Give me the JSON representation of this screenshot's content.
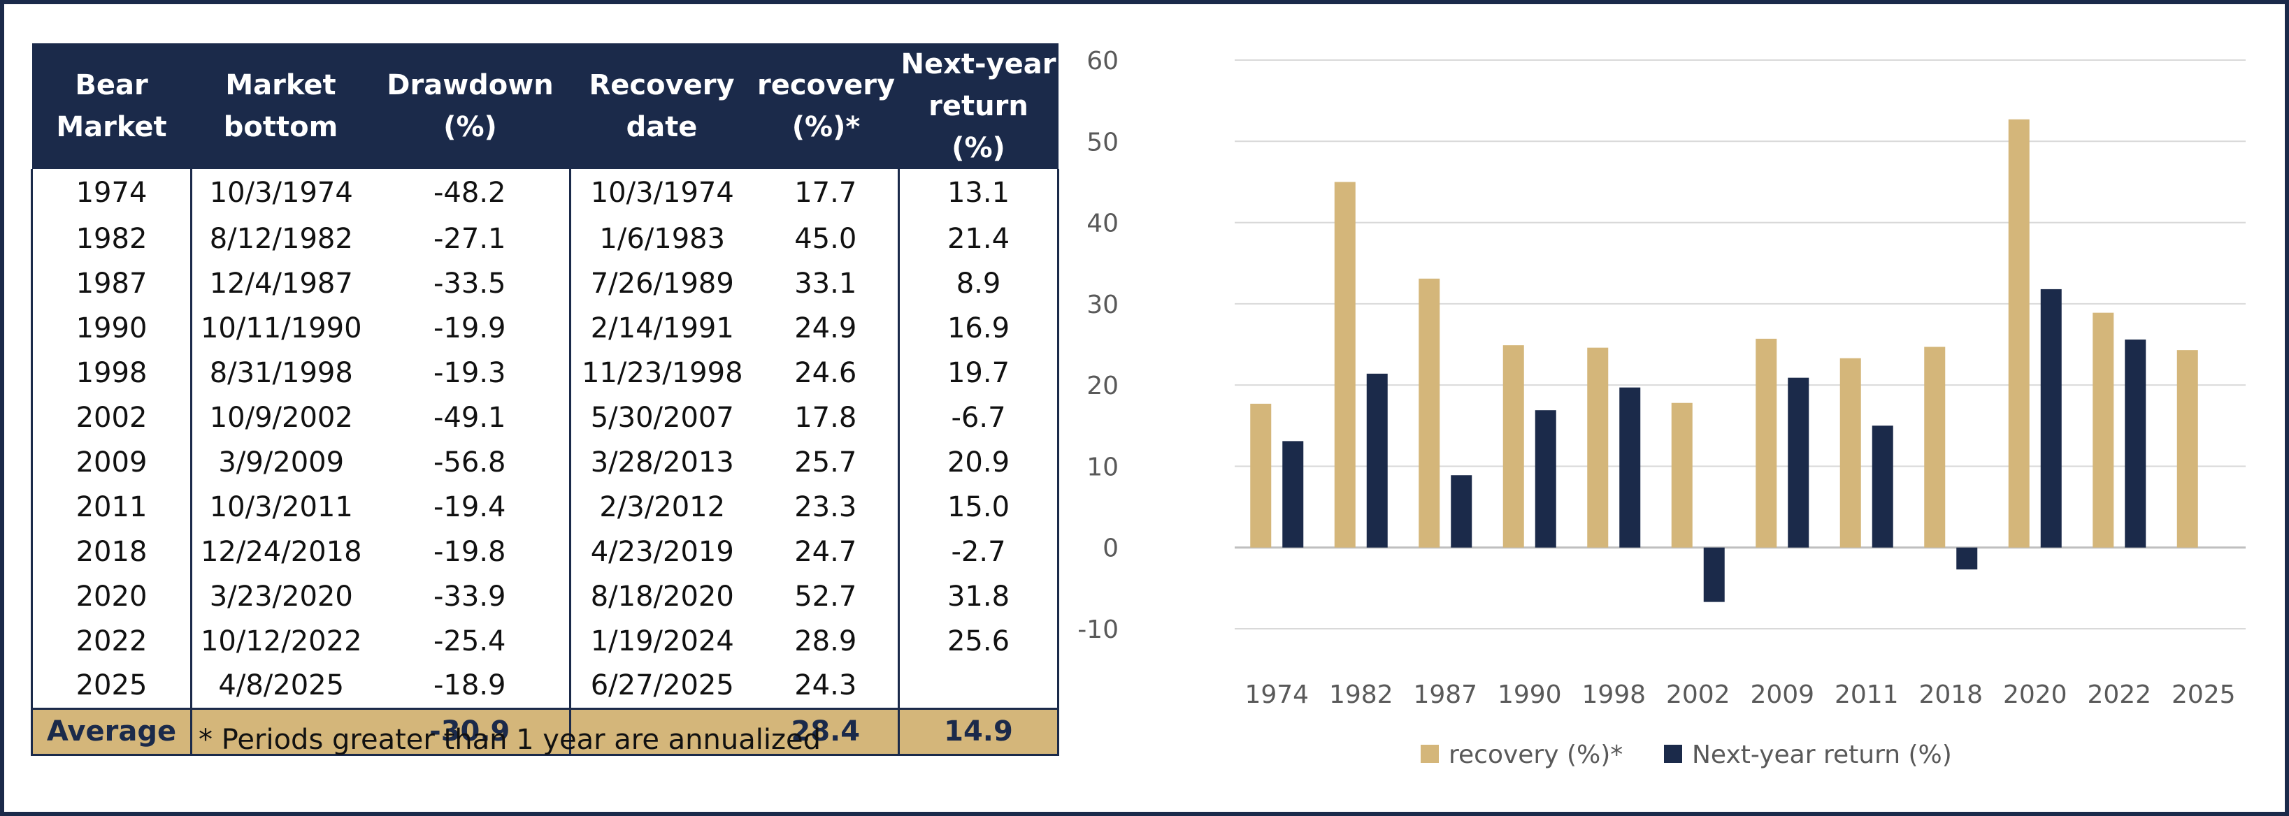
{
  "table": {
    "headers": [
      {
        "l1": "Bear",
        "l2": "Market"
      },
      {
        "l1": "Market",
        "l2": "bottom"
      },
      {
        "l1": "Drawdown",
        "l2": "(%)"
      },
      {
        "l1": "Recovery",
        "l2": "date"
      },
      {
        "l1": "recovery",
        "l2": "(%)*"
      },
      {
        "l1": "Next-year",
        "l2": "return (%)"
      }
    ],
    "rows": [
      [
        "1974",
        "10/3/1974",
        "-48.2",
        "10/3/1974",
        "17.7",
        "13.1"
      ],
      [
        "1982",
        "8/12/1982",
        "-27.1",
        "1/6/1983",
        "45.0",
        "21.4"
      ],
      [
        "1987",
        "12/4/1987",
        "-33.5",
        "7/26/1989",
        "33.1",
        "8.9"
      ],
      [
        "1990",
        "10/11/1990",
        "-19.9",
        "2/14/1991",
        "24.9",
        "16.9"
      ],
      [
        "1998",
        "8/31/1998",
        "-19.3",
        "11/23/1998",
        "24.6",
        "19.7"
      ],
      [
        "2002",
        "10/9/2002",
        "-49.1",
        "5/30/2007",
        "17.8",
        "-6.7"
      ],
      [
        "2009",
        "3/9/2009",
        "-56.8",
        "3/28/2013",
        "25.7",
        "20.9"
      ],
      [
        "2011",
        "10/3/2011",
        "-19.4",
        "2/3/2012",
        "23.3",
        "15.0"
      ],
      [
        "2018",
        "12/24/2018",
        "-19.8",
        "4/23/2019",
        "24.7",
        "-2.7"
      ],
      [
        "2020",
        "3/23/2020",
        "-33.9",
        "8/18/2020",
        "52.7",
        "31.8"
      ],
      [
        "2022",
        "10/12/2022",
        "-25.4",
        "1/19/2024",
        "28.9",
        "25.6"
      ],
      [
        "2025",
        "4/8/2025",
        "-18.9",
        "6/27/2025",
        "24.3",
        ""
      ]
    ],
    "footer": [
      "Average",
      "",
      "-30.9",
      "",
      "28.4",
      "14.9"
    ],
    "footnote": "* Periods greater than 1 year are annualized"
  },
  "colors": {
    "navy": "#1b2a4a",
    "gold": "#d4b67a",
    "grid": "#d9d9d9",
    "axis_text": "#595959"
  },
  "chart_data": {
    "type": "bar",
    "categories": [
      "1974",
      "1982",
      "1987",
      "1990",
      "1998",
      "2002",
      "2009",
      "2011",
      "2018",
      "2020",
      "2022",
      "2025"
    ],
    "series": [
      {
        "name": "recovery  (%)*",
        "color": "#d4b67a",
        "values": [
          17.7,
          45.0,
          33.1,
          24.9,
          24.6,
          17.8,
          25.7,
          23.3,
          24.7,
          52.7,
          28.9,
          24.3
        ]
      },
      {
        "name": "Next-year return (%)",
        "color": "#1b2a4a",
        "values": [
          13.1,
          21.4,
          8.9,
          16.9,
          19.7,
          -6.7,
          20.9,
          15.0,
          -2.7,
          31.8,
          25.6,
          null
        ]
      }
    ],
    "yticks": [
      -10,
      0,
      10,
      20,
      30,
      40,
      50,
      60
    ],
    "ylim": [
      -10,
      60
    ],
    "grid": true,
    "legend": "bottom"
  }
}
